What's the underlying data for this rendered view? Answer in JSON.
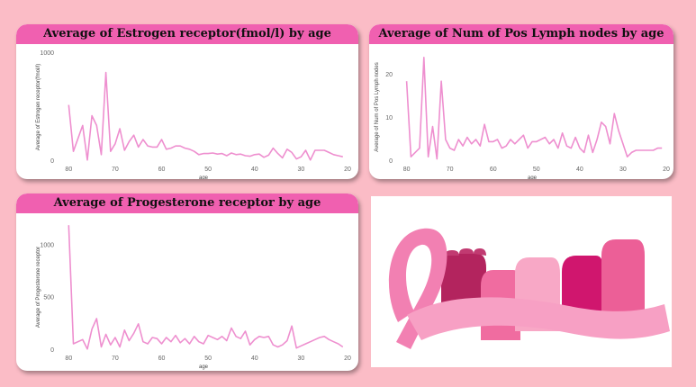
{
  "chart_data": [
    {
      "type": "line",
      "title": "Average of Estrogen receptor(fmol/l) by age",
      "xlabel": "age",
      "ylabel": "Average of Estrogen receptor(fmol/l)",
      "xlim": [
        82,
        20
      ],
      "ylim": [
        0,
        1000
      ],
      "x_ticks": [
        80,
        70,
        60,
        50,
        40,
        30,
        20
      ],
      "y_ticks": [
        0,
        1000
      ],
      "color": "#ee8fcf",
      "x": [
        80,
        79,
        77,
        76,
        75,
        74,
        73,
        72,
        71,
        70,
        69,
        68,
        67,
        66,
        65,
        64,
        63,
        62,
        61,
        60,
        59,
        58,
        57,
        56,
        55,
        54,
        53,
        52,
        51,
        50,
        49,
        48,
        47,
        46,
        45,
        44,
        43,
        42,
        41,
        40,
        39,
        38,
        37,
        36,
        35,
        34,
        33,
        32,
        31,
        30,
        29,
        28,
        27,
        26,
        25,
        24,
        23,
        22,
        21
      ],
      "y": [
        520,
        90,
        330,
        10,
        420,
        330,
        60,
        820,
        90,
        160,
        300,
        100,
        180,
        240,
        130,
        200,
        140,
        130,
        130,
        200,
        110,
        120,
        140,
        140,
        120,
        110,
        90,
        60,
        70,
        70,
        75,
        65,
        70,
        50,
        75,
        60,
        65,
        50,
        45,
        60,
        65,
        35,
        55,
        120,
        70,
        30,
        110,
        80,
        20,
        40,
        100,
        10,
        100,
        100,
        100,
        80,
        60,
        50,
        40
      ]
    },
    {
      "type": "line",
      "title": "Average of Num of Pos Lymph nodes by age",
      "xlabel": "age",
      "ylabel": "Average of Num of Pos Lymph nodes",
      "xlim": [
        82,
        20
      ],
      "ylim": [
        0,
        25
      ],
      "x_ticks": [
        80,
        70,
        60,
        50,
        40,
        30,
        20
      ],
      "y_ticks": [
        0,
        10,
        20
      ],
      "color": "#ee8fcf",
      "x": [
        80,
        79,
        77,
        76,
        75,
        74,
        73,
        72,
        71,
        70,
        69,
        68,
        67,
        66,
        65,
        64,
        63,
        62,
        61,
        60,
        59,
        58,
        57,
        56,
        55,
        54,
        53,
        52,
        51,
        50,
        49,
        48,
        47,
        46,
        45,
        44,
        43,
        42,
        41,
        40,
        39,
        38,
        37,
        36,
        35,
        34,
        33,
        32,
        31,
        30,
        29,
        28,
        27,
        26,
        25,
        24,
        23,
        22,
        21
      ],
      "y": [
        18.5,
        1,
        3,
        24,
        1,
        8,
        0.5,
        18.5,
        5,
        3,
        2.5,
        5,
        3.5,
        5.5,
        4,
        5,
        3.5,
        8.5,
        4.5,
        4.5,
        5,
        3,
        3.5,
        5,
        4,
        5,
        6,
        3,
        4.5,
        4.5,
        5,
        5.5,
        4,
        5,
        3,
        6.5,
        3.5,
        3,
        5.5,
        3,
        2,
        6,
        2,
        5,
        9,
        8,
        4,
        11,
        7,
        4,
        1,
        2,
        2.5,
        2.5,
        2.5,
        2.5,
        2.5,
        3,
        3
      ]
    },
    {
      "type": "line",
      "title": "Average of Progesterone receptor by age",
      "xlabel": "age",
      "ylabel": "Average of Progesterone receptor",
      "xlim": [
        82,
        20
      ],
      "ylim": [
        0,
        1200
      ],
      "x_ticks": [
        80,
        70,
        60,
        50,
        40,
        30,
        20
      ],
      "y_ticks": [
        0,
        500,
        1000
      ],
      "color": "#ee8fcf",
      "x": [
        80,
        79,
        77,
        76,
        75,
        74,
        73,
        72,
        71,
        70,
        69,
        68,
        67,
        66,
        65,
        64,
        63,
        62,
        61,
        60,
        59,
        58,
        57,
        56,
        55,
        54,
        53,
        52,
        51,
        50,
        49,
        48,
        47,
        46,
        45,
        44,
        43,
        42,
        41,
        40,
        39,
        38,
        37,
        36,
        35,
        34,
        33,
        32,
        31,
        30,
        29,
        28,
        27,
        26,
        25,
        24,
        23,
        22,
        21
      ],
      "y": [
        1190,
        60,
        100,
        10,
        200,
        300,
        30,
        150,
        50,
        120,
        30,
        190,
        90,
        160,
        250,
        80,
        60,
        120,
        110,
        60,
        120,
        80,
        140,
        70,
        110,
        60,
        130,
        80,
        60,
        140,
        120,
        100,
        130,
        90,
        210,
        130,
        110,
        180,
        50,
        100,
        130,
        120,
        130,
        50,
        30,
        50,
        90,
        230,
        20,
        40,
        60,
        80,
        100,
        120,
        130,
        100,
        80,
        60,
        30
      ]
    }
  ]
}
